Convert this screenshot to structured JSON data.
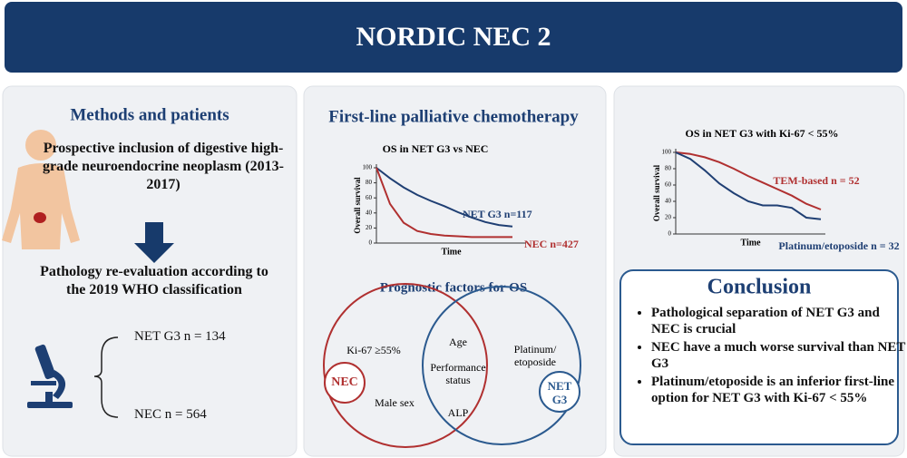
{
  "header": {
    "title": "NORDIC NEC 2"
  },
  "methods": {
    "title": "Methods and patients",
    "inclusion": "Prospective inclusion of digestive high-grade neuroendocrine neoplasm (2013-2017)",
    "reevaluation": "Pathology re-evaluation according to the 2019 WHO classification",
    "groups": [
      "NET G3 n = 134",
      "NEC n = 564"
    ]
  },
  "chemo": {
    "title": "First-line palliative chemotherapy",
    "chart_data": {
      "type": "line",
      "title": "OS in NET G3 vs NEC",
      "ylabel": "Overall survival",
      "xlabel": "Time",
      "ylim": [
        0,
        100
      ],
      "yticks": [
        0,
        20,
        40,
        60,
        80,
        100
      ],
      "series": [
        {
          "name": "NET G3 n=117",
          "color": "#1f3f73",
          "values": [
            100,
            86,
            74,
            64,
            56,
            49,
            41,
            34,
            28,
            24,
            22
          ]
        },
        {
          "name": "NEC n=427",
          "color": "#b03030",
          "values": [
            100,
            52,
            27,
            16,
            12,
            10,
            9,
            8,
            8,
            8,
            8
          ]
        }
      ]
    },
    "venn": {
      "title": "Prognostic factors for OS",
      "left": "NEC",
      "right": "NET G3",
      "left_only": [
        "Ki-67 ≥55%",
        "Male sex"
      ],
      "shared": [
        "Age",
        "Performance status",
        "ALP"
      ],
      "right_only": [
        "Platinum/ etoposide"
      ]
    }
  },
  "ki67": {
    "chart_data": {
      "type": "line",
      "title": "OS in NET G3 with Ki-67 < 55%",
      "ylabel": "Overall survival",
      "xlabel": "Time",
      "ylim": [
        0,
        100
      ],
      "yticks": [
        0,
        20,
        40,
        60,
        80,
        100
      ],
      "series": [
        {
          "name": "TEM-based n = 52",
          "color": "#b03030",
          "values": [
            100,
            98,
            94,
            88,
            80,
            71,
            63,
            55,
            47,
            37,
            30
          ]
        },
        {
          "name": "Platinum/etoposide n = 32",
          "color": "#1f3f73",
          "values": [
            100,
            92,
            78,
            62,
            50,
            40,
            35,
            35,
            32,
            20,
            18
          ]
        }
      ]
    }
  },
  "conclusion": {
    "title": "Conclusion",
    "items": [
      "Pathological separation of NET G3 and NEC is crucial",
      "NEC have a much worse survival than NET G3",
      "Platinum/etoposide is an inferior first-line option for NET G3 with Ki-67 < 55%"
    ]
  }
}
